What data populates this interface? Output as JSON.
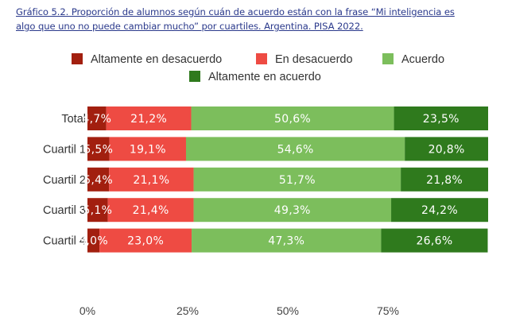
{
  "caption": {
    "line1": "Gráfico 5.2. Proporción de alumnos según cuán de acuerdo están con la frase “Mi inteligencia es",
    "line2": "algo que uno no puede cambiar mucho” por cuartiles. Argentina. PISA 2022."
  },
  "chart_data": {
    "type": "bar",
    "orientation": "horizontal",
    "stacked": true,
    "categories": [
      "Total",
      "Cuartil 1",
      "Cuartil 2",
      "Cuartil 3",
      "Cuartil 4"
    ],
    "series": [
      {
        "name": "Altamente en desacuerdo",
        "color": "#a21f0f",
        "values": [
          4.7,
          5.5,
          5.4,
          5.1,
          3.0
        ],
        "labels": [
          "4,7%",
          "5,5%",
          "5,4%",
          "5,1%",
          "3,0%"
        ]
      },
      {
        "name": "En desacuerdo",
        "color": "#ee4b43",
        "values": [
          21.2,
          19.1,
          21.1,
          21.4,
          23.0
        ],
        "labels": [
          "21,2%",
          "19,1%",
          "21,1%",
          "21,4%",
          "23,0%"
        ]
      },
      {
        "name": "Acuerdo",
        "color": "#7cbe5c",
        "values": [
          50.6,
          54.6,
          51.7,
          49.3,
          47.3
        ],
        "labels": [
          "50,6%",
          "54,6%",
          "51,7%",
          "49,3%",
          "47,3%"
        ]
      },
      {
        "name": "Altamente en acuerdo",
        "color": "#2f7a1d",
        "values": [
          23.5,
          20.8,
          21.8,
          24.2,
          26.6
        ],
        "labels": [
          "23,5%",
          "20,8%",
          "21,8%",
          "24,2%",
          "26,6%"
        ]
      }
    ],
    "xlim": [
      0,
      100
    ],
    "xticks": [
      "0%",
      "25%",
      "50%",
      "75%"
    ],
    "legend_position": "top",
    "grid": false
  }
}
